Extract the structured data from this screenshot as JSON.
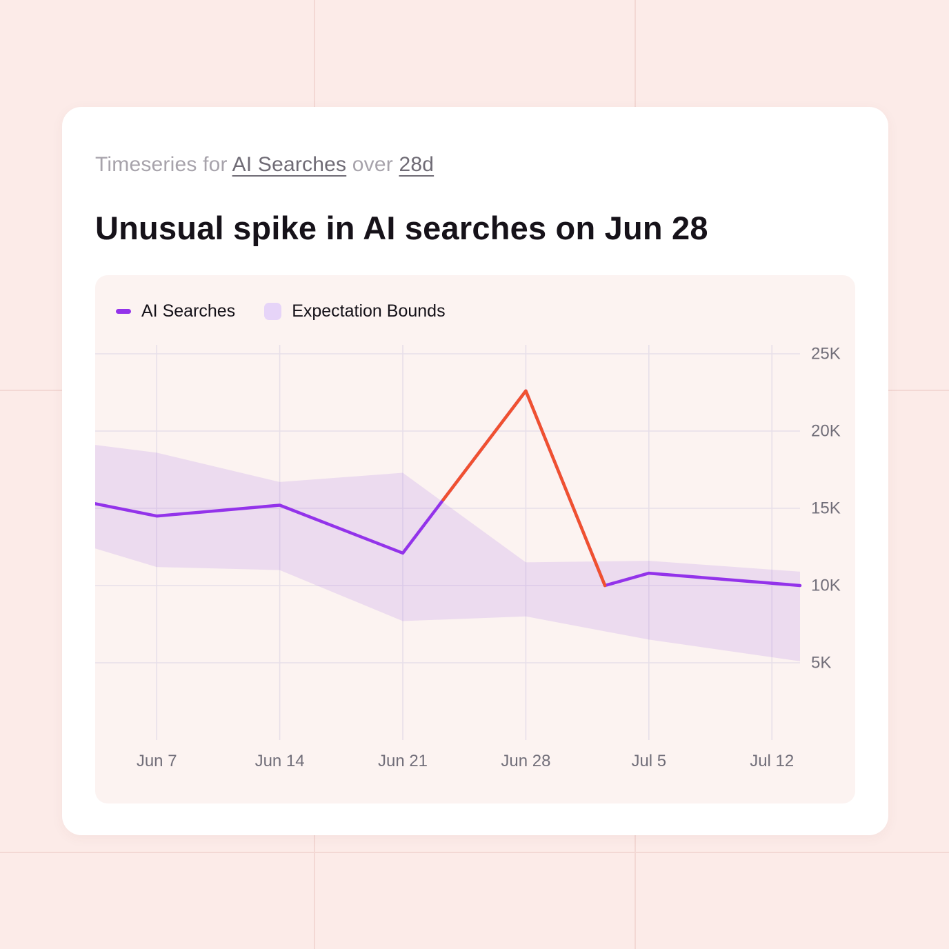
{
  "colors": {
    "series": "#9333ea",
    "anomaly": "#f0512f",
    "band_fill": "rgba(154,94,233,0.16)",
    "band_swatch": "#e6d4f8",
    "grid": "#e7dfe9",
    "axis_text": "#716e79"
  },
  "card": {
    "subtitle": {
      "prefix": "Timeseries for ",
      "metric": "AI Searches",
      "connector": " over ",
      "range": "28d"
    },
    "title": "Unusual spike in AI searches on Jun 28"
  },
  "legend": {
    "items": [
      {
        "label": "AI Searches"
      },
      {
        "label": "Expectation Bounds"
      }
    ]
  },
  "chart_data": {
    "type": "line",
    "title": "Unusual spike in AI searches on Jun 28",
    "xlabel": "",
    "ylabel": "AI Searches",
    "x_unit": "day offset within window",
    "x_domain": [
      0,
      40.1
    ],
    "y_domain": [
      0,
      26000
    ],
    "grid": true,
    "legend_position": "top-left",
    "x_ticks": [
      3.5,
      10.5,
      17.5,
      24.5,
      31.5,
      38.5
    ],
    "x_tick_labels": [
      "Jun 7",
      "Jun 14",
      "Jun 21",
      "Jun 28",
      "Jul 5",
      "Jul 12"
    ],
    "y_ticks": [
      5,
      10,
      15,
      20,
      25
    ],
    "y_tick_labels": [
      "5K",
      "10K",
      "15K",
      "20K",
      "25K"
    ],
    "series": [
      {
        "name": "AI Searches",
        "points": [
          {
            "x": 0,
            "y": 15300
          },
          {
            "x": 3.5,
            "y": 14500
          },
          {
            "x": 10.5,
            "y": 15200
          },
          {
            "x": 17.5,
            "y": 12100
          },
          {
            "x": 24.5,
            "y": 22600
          },
          {
            "x": 29,
            "y": 10000
          },
          {
            "x": 31.5,
            "y": 10800
          },
          {
            "x": 40.1,
            "y": 10000
          }
        ]
      }
    ],
    "anomaly_segment": {
      "name": "Anomalous spike (Jun 28)",
      "points": [
        {
          "x": 19.8,
          "y": 15550
        },
        {
          "x": 24.5,
          "y": 22600
        },
        {
          "x": 29,
          "y": 10000
        }
      ]
    },
    "expectation_bounds": {
      "name": "Expectation Bounds",
      "points": [
        {
          "x": 0,
          "upper": 19100,
          "lower": 12400
        },
        {
          "x": 3.5,
          "upper": 18600,
          "lower": 11200
        },
        {
          "x": 10.5,
          "upper": 16700,
          "lower": 11000
        },
        {
          "x": 17.5,
          "upper": 17300,
          "lower": 7700
        },
        {
          "x": 24.5,
          "upper": 11500,
          "lower": 8000
        },
        {
          "x": 31.5,
          "upper": 11600,
          "lower": 6500
        },
        {
          "x": 40.1,
          "upper": 10900,
          "lower": 5100
        }
      ]
    }
  }
}
